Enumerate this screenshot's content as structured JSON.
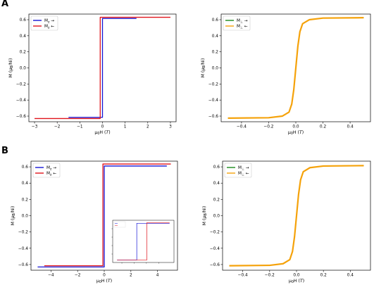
{
  "panel_labels": [
    "A",
    "B"
  ],
  "colors": {
    "blue": "#1515d6",
    "red": "#e0141c",
    "green": "#1a8a1a",
    "orange": "#f5a20a"
  },
  "chart_data": [
    {
      "id": "A-left",
      "type": "line",
      "ylabel": "M (μB/Ni)",
      "xlabel": "μ0H (T)",
      "xlim": [
        -3.25,
        3.25
      ],
      "ylim": [
        -0.67,
        0.67
      ],
      "xticks": [
        -3,
        -2,
        -1,
        0,
        1,
        2,
        3
      ],
      "xtick_labels": [
        "−3",
        "−2",
        "−1",
        "0",
        "1",
        "2",
        "3"
      ],
      "yticks": [
        -0.6,
        -0.4,
        -0.2,
        0.0,
        0.2,
        0.4,
        0.6
      ],
      "ytick_labels": [
        "−0.6",
        "−0.4",
        "−0.2",
        "0.0",
        "0.2",
        "0.4",
        "0.6"
      ],
      "legend_loc": "upper left",
      "series": [
        {
          "name": "Mz →",
          "color": "blue",
          "x": [
            -1.5,
            0.0,
            0.0,
            1.5
          ],
          "y": [
            -0.615,
            -0.615,
            0.615,
            0.615
          ]
        },
        {
          "name": "Mz ←",
          "color": "red",
          "x": [
            3.0,
            -0.1,
            -0.1,
            -3.0
          ],
          "y": [
            0.63,
            0.63,
            -0.63,
            -0.63
          ]
        }
      ]
    },
    {
      "id": "A-right",
      "type": "line",
      "ylabel": "M (μB/Ni)",
      "xlabel": "μ0H (T)",
      "xlim": [
        -0.55,
        0.55
      ],
      "ylim": [
        -0.67,
        0.67
      ],
      "xticks": [
        -0.4,
        -0.2,
        0.0,
        0.2,
        0.4
      ],
      "xtick_labels": [
        "−0.4",
        "−0.2",
        "0.0",
        "0.2",
        "0.4"
      ],
      "yticks": [
        -0.6,
        -0.4,
        -0.2,
        0.0,
        0.2,
        0.4,
        0.6
      ],
      "ytick_labels": [
        "−0.6",
        "−0.4",
        "−0.2",
        "0.0",
        "0.2",
        "0.4",
        "0.6"
      ],
      "legend_loc": "upper left",
      "series": [
        {
          "name": "M⊥ →",
          "color": "green",
          "x": [
            -0.5,
            -0.2,
            -0.1,
            -0.05,
            -0.03,
            -0.015,
            0.0,
            0.015,
            0.03,
            0.05,
            0.1,
            0.2,
            0.5
          ],
          "y": [
            -0.625,
            -0.62,
            -0.6,
            -0.55,
            -0.45,
            -0.27,
            0.0,
            0.27,
            0.45,
            0.55,
            0.6,
            0.62,
            0.625
          ]
        },
        {
          "name": "M⊥ ←",
          "color": "orange",
          "x": [
            -0.5,
            -0.2,
            -0.1,
            -0.05,
            -0.03,
            -0.015,
            0.0,
            0.015,
            0.03,
            0.05,
            0.1,
            0.2,
            0.5
          ],
          "y": [
            -0.625,
            -0.62,
            -0.6,
            -0.55,
            -0.45,
            -0.27,
            0.0,
            0.27,
            0.45,
            0.55,
            0.6,
            0.62,
            0.625
          ]
        }
      ]
    },
    {
      "id": "B-left",
      "type": "line",
      "ylabel": "M (μB/Ni)",
      "xlabel": "μ0H (T)",
      "xlim": [
        -5.5,
        5.5
      ],
      "ylim": [
        -0.67,
        0.67
      ],
      "xticks": [
        -4,
        -2,
        0,
        2,
        4
      ],
      "xtick_labels": [
        "−4",
        "−2",
        "0",
        "2",
        "4"
      ],
      "yticks": [
        -0.6,
        -0.4,
        -0.2,
        0.0,
        0.2,
        0.4,
        0.6
      ],
      "ytick_labels": [
        "−0.6",
        "−0.4",
        "−0.2",
        "0.0",
        "0.2",
        "0.4",
        "0.6"
      ],
      "legend_loc": "upper left",
      "series": [
        {
          "name": "Mz →",
          "color": "blue",
          "x": [
            -5.0,
            0.0,
            0.0,
            4.7
          ],
          "y": [
            -0.63,
            -0.63,
            0.61,
            0.61
          ]
        },
        {
          "name": "Mz ←",
          "color": "red",
          "x": [
            5.0,
            -0.1,
            -0.1,
            -4.5
          ],
          "y": [
            0.635,
            0.635,
            -0.615,
            -0.615
          ]
        }
      ]
    },
    {
      "id": "B-right",
      "type": "line",
      "ylabel": "M (μB/Ni)",
      "xlabel": "μ0H (T)",
      "xlim": [
        -0.55,
        0.55
      ],
      "ylim": [
        -0.67,
        0.67
      ],
      "xticks": [
        -0.4,
        -0.2,
        0.0,
        0.2,
        0.4
      ],
      "xtick_labels": [
        "−0.4",
        "−0.2",
        "0.0",
        "0.2",
        "0.4"
      ],
      "yticks": [
        -0.6,
        -0.4,
        -0.2,
        0.0,
        0.2,
        0.4,
        0.6
      ],
      "ytick_labels": [
        "−0.6",
        "−0.4",
        "−0.2",
        "0.0",
        "0.2",
        "0.4",
        "0.6"
      ],
      "legend_loc": "upper left",
      "series": [
        {
          "name": "M⊥ →",
          "color": "green",
          "x": [
            -0.5,
            -0.2,
            -0.1,
            -0.05,
            -0.03,
            -0.015,
            0.0,
            0.015,
            0.03,
            0.05,
            0.1,
            0.2,
            0.5
          ],
          "y": [
            -0.615,
            -0.61,
            -0.59,
            -0.54,
            -0.44,
            -0.26,
            0.0,
            0.26,
            0.44,
            0.54,
            0.59,
            0.61,
            0.615
          ]
        },
        {
          "name": "M⊥ ←",
          "color": "orange",
          "x": [
            -0.5,
            -0.2,
            -0.1,
            -0.05,
            -0.03,
            -0.015,
            0.0,
            0.015,
            0.03,
            0.05,
            0.1,
            0.2,
            0.5
          ],
          "y": [
            -0.615,
            -0.61,
            -0.59,
            -0.54,
            -0.44,
            -0.26,
            0.0,
            0.26,
            0.44,
            0.54,
            0.59,
            0.61,
            0.615
          ]
        }
      ]
    }
  ],
  "inset_chart": {
    "parent": "B-left",
    "type": "line",
    "xlim": [
      -0.35,
      0.35
    ],
    "ylim": [
      -0.7,
      0.7
    ],
    "series": [
      {
        "name": "Mz →",
        "color": "blue",
        "x": [
          -0.3,
          -0.075,
          -0.075,
          0.3
        ],
        "y": [
          -0.62,
          -0.62,
          0.6,
          0.6
        ]
      },
      {
        "name": "Mz ←",
        "color": "red",
        "x": [
          0.3,
          0.04,
          0.04,
          -0.3
        ],
        "y": [
          0.62,
          0.62,
          -0.62,
          -0.62
        ]
      }
    ]
  }
}
